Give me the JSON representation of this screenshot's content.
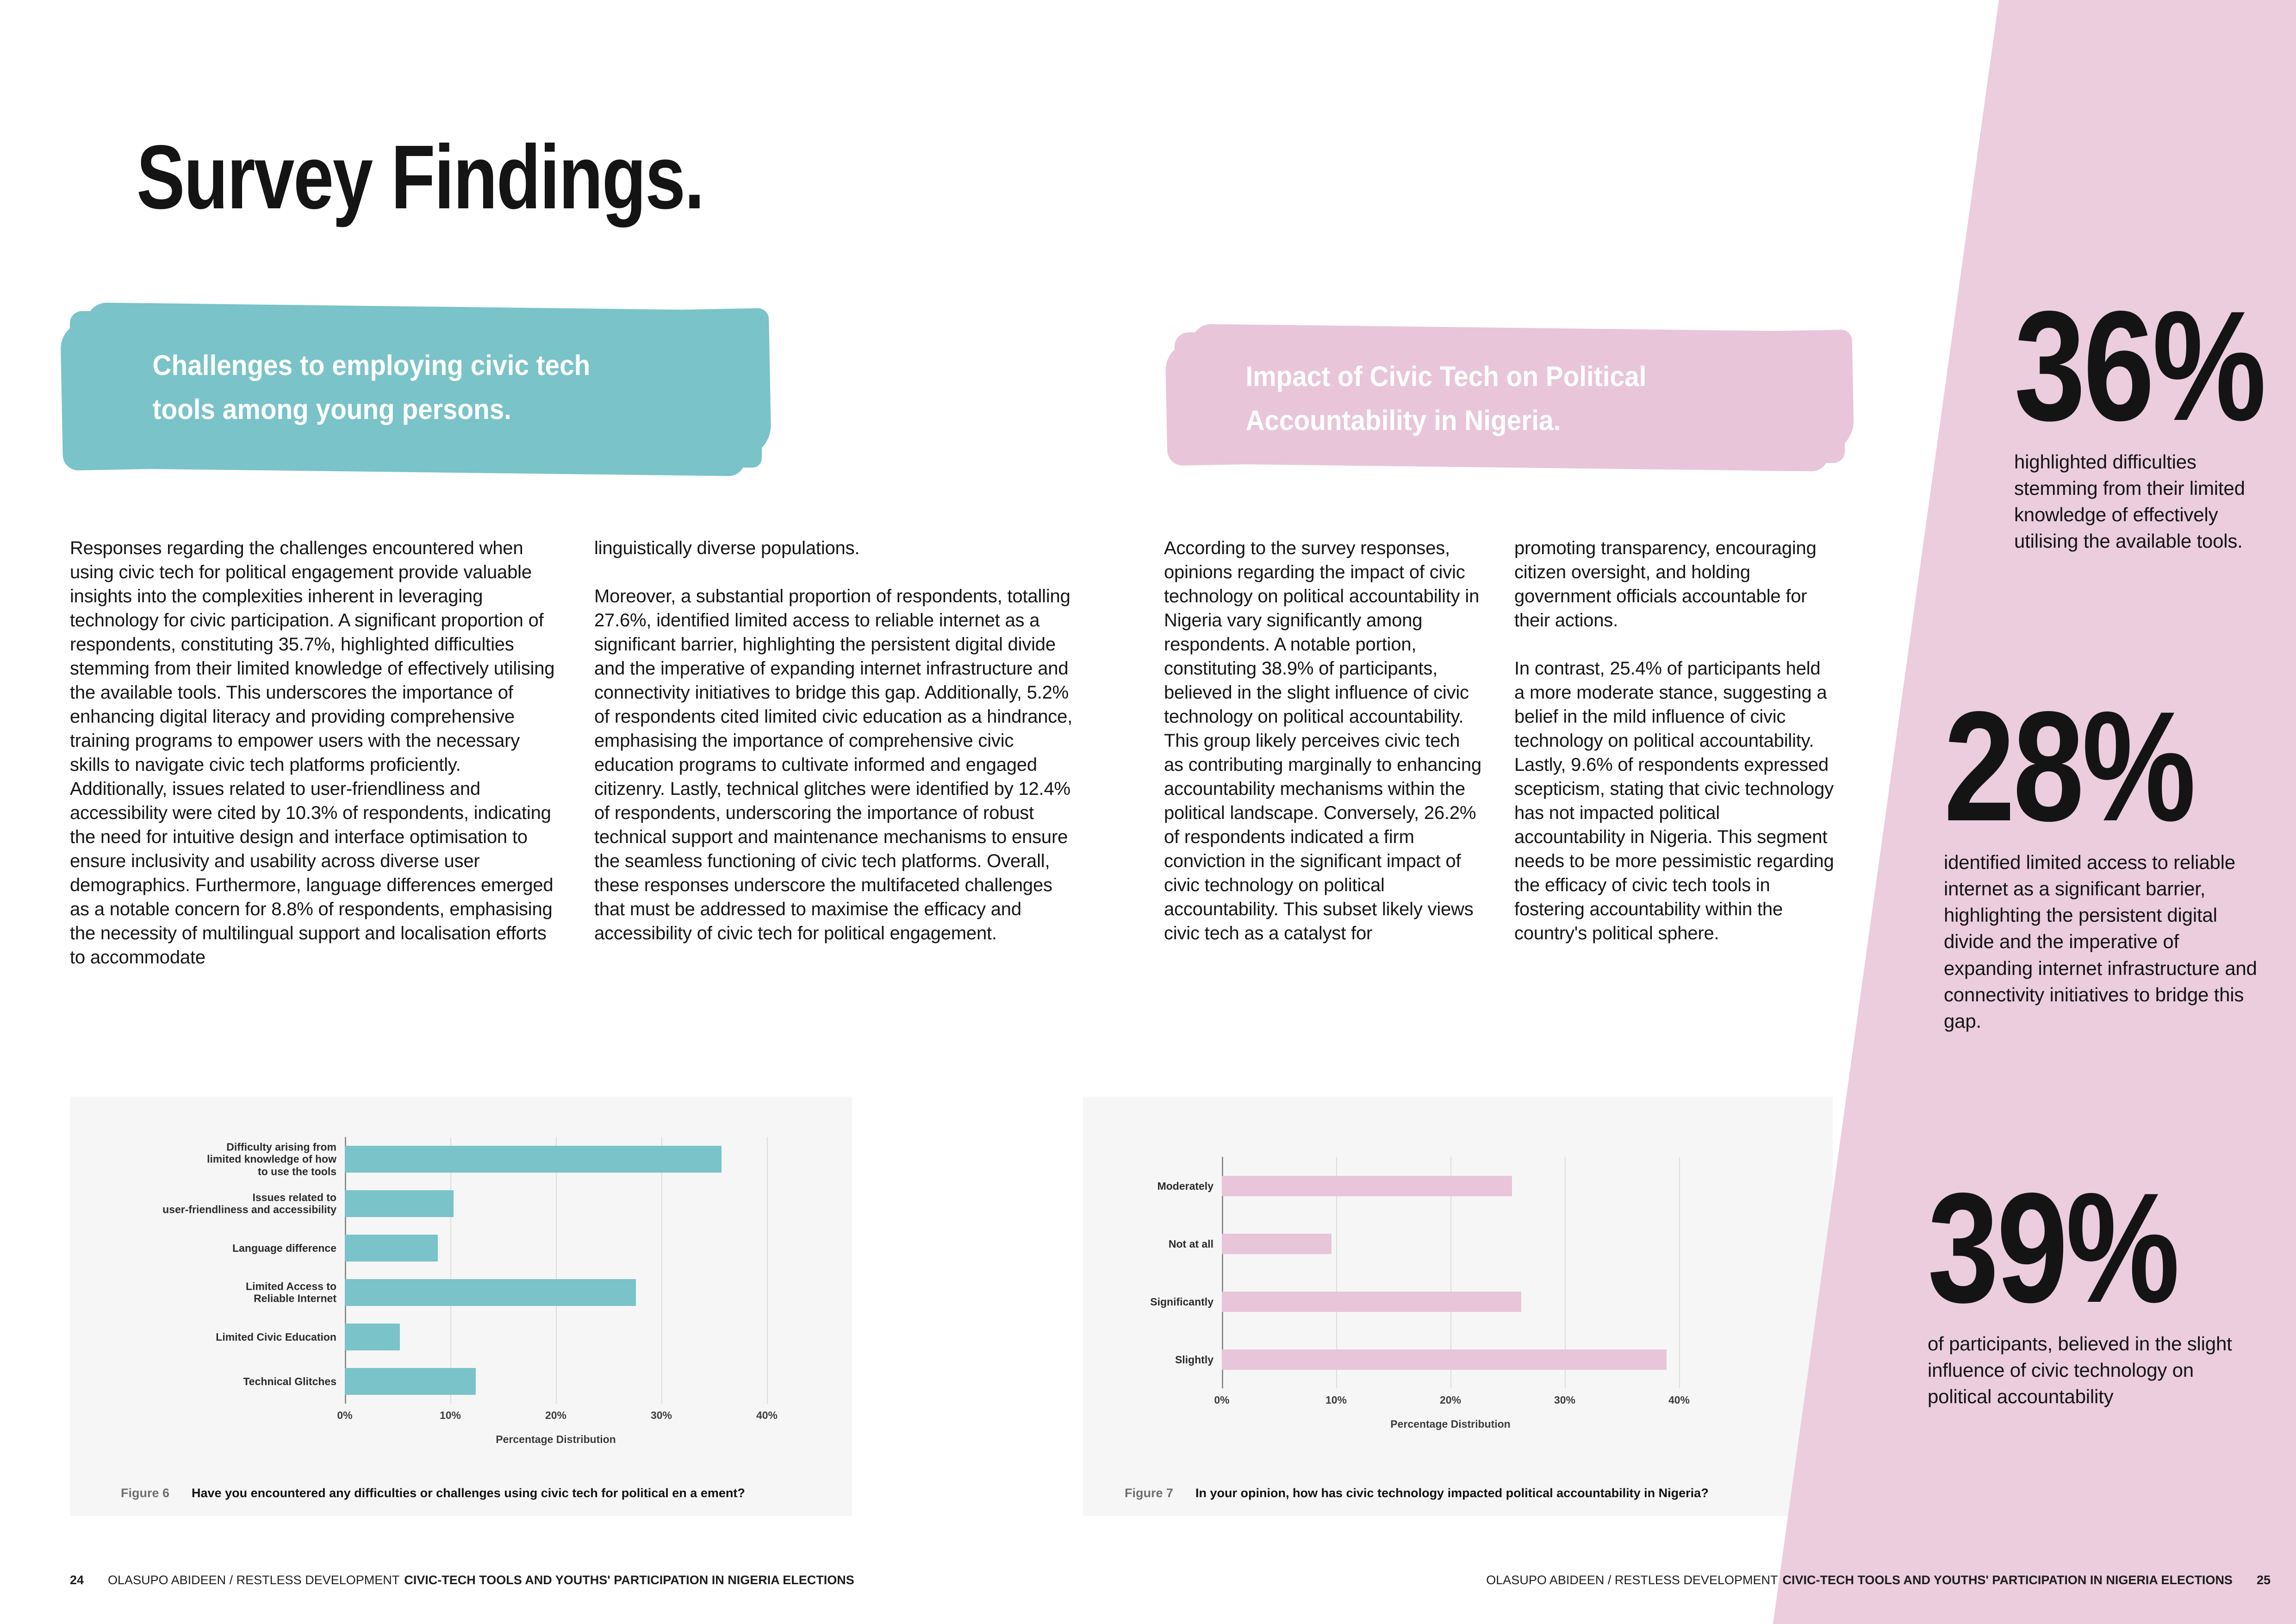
{
  "colors": {
    "teal": "#79c3c9",
    "pink": "#e8c5d8",
    "pink_band": "#ebcddd",
    "panel": "#f6f6f7"
  },
  "page": {
    "title": "Survey Findings."
  },
  "left_section": {
    "heading": "Challenges to employing civic tech\ntools among young persons.",
    "col1": "Responses regarding the challenges encountered when using civic tech for political engagement provide valuable insights into the complexities inherent in leveraging technology for civic participation. A significant proportion of respondents, constituting 35.7%, highlighted difficulties stemming from their limited knowledge of effectively utilising the available tools. This underscores the importance of enhancing digital literacy and providing comprehensive training programs to empower users with the necessary skills to navigate civic tech platforms proficiently. Additionally, issues related to user-friendliness and accessibility were cited by 10.3% of respondents, indicating the need for intuitive design and interface optimisation to ensure inclusivity and usability across diverse user demographics. Furthermore, language differences emerged as a notable concern for 8.8% of respondents, emphasising the necessity of multilingual support and localisation efforts to accommodate",
    "col2": "linguistically diverse populations.\n\nMoreover, a substantial proportion of respondents, totalling 27.6%, identified limited access to reliable internet as a significant barrier, highlighting the persistent digital divide and the imperative of expanding internet infrastructure and connectivity initiatives to bridge this gap. Additionally, 5.2% of respondents cited limited civic education as a hindrance, emphasising the importance of comprehensive civic education programs to cultivate informed and engaged citizenry. Lastly, technical glitches were identified by 12.4% of respondents, underscoring the importance of robust technical support and maintenance mechanisms to ensure the seamless functioning of civic tech platforms. Overall, these responses underscore the multifaceted challenges that must be addressed to maximise the efficacy and accessibility of civic tech for political engagement."
  },
  "right_section": {
    "heading": "Impact of Civic Tech on Political\nAccountability in Nigeria.",
    "col1": "According to the survey responses, opinions regarding the impact of civic technology on political accountability in Nigeria vary significantly among respondents. A notable portion, constituting 38.9% of participants, believed in the slight influence of civic technology on political accountability. This group likely perceives civic tech as contributing marginally to enhancing accountability mechanisms within the political landscape. Conversely, 26.2% of respondents indicated a firm conviction in the significant impact of civic technology on political accountability. This subset likely views civic tech as a catalyst for",
    "col2": "promoting transparency, encouraging citizen oversight, and holding government officials accountable for their actions.\n\nIn contrast, 25.4% of participants held a more moderate stance, suggesting a belief in the mild influence of civic technology on political accountability. Lastly, 9.6% of respondents expressed scepticism, stating that civic technology has not impacted political accountability in Nigeria. This segment needs to be more pessimistic regarding the efficacy of civic tech tools in fostering accountability within the country's political sphere."
  },
  "stats": [
    {
      "value": "36%",
      "text": "highlighted difficulties stemming from their limited knowledge of effectively utilising the available tools."
    },
    {
      "value": "28%",
      "text": "identified limited access to reliable internet as a significant barrier, highlighting the persistent digital divide and the imperative of expanding internet infrastructure and connectivity initiatives to bridge this gap."
    },
    {
      "value": "39%",
      "text": "of participants, believed in the slight influence of civic technology on political accountability"
    }
  ],
  "chart_data": [
    {
      "type": "bar",
      "orientation": "horizontal",
      "figure_label": "Figure 6",
      "title": "Have you encountered any difficulties or challenges using civic tech for political en a ement?",
      "categories": [
        "Difficulty arising from\nlimited knowledge of how\nto use the tools",
        "Issues related to\nuser-friendliness and accessibility",
        "Language difference",
        "Limited Access to\nReliable Internet",
        "Limited Civic Education",
        "Technical Glitches"
      ],
      "values": [
        35.7,
        10.3,
        8.8,
        27.6,
        5.2,
        12.4
      ],
      "xlabel": "Percentage Distribution",
      "xlim": [
        0,
        40
      ],
      "ticks": [
        0,
        10,
        20,
        30,
        40
      ],
      "tick_labels": [
        "0%",
        "10%",
        "20%",
        "30%",
        "40%"
      ],
      "bar_color": "#79c3c9",
      "grid": true,
      "legend": false
    },
    {
      "type": "bar",
      "orientation": "horizontal",
      "figure_label": "Figure 7",
      "title": "In your opinion, how has civic technology impacted political accountability in Nigeria?",
      "categories": [
        "Moderately",
        "Not at all",
        "Significantly",
        "Slightly"
      ],
      "values": [
        25.4,
        9.6,
        26.2,
        38.9
      ],
      "xlabel": "Percentage Distribution",
      "xlim": [
        0,
        40
      ],
      "ticks": [
        0,
        10,
        20,
        30,
        40
      ],
      "tick_labels": [
        "0%",
        "10%",
        "20%",
        "30%",
        "40%"
      ],
      "bar_color": "#e8c5d8",
      "grid": true,
      "legend": false
    }
  ],
  "footer_left": {
    "page_num": "24",
    "authors": "OLASUPO ABIDEEN / RESTLESS DEVELOPMENT",
    "doc_title": "CIVIC-TECH TOOLS AND YOUTHS' PARTICIPATION IN NIGERIA ELECTIONS"
  },
  "footer_right": {
    "page_num": "25",
    "authors": "OLASUPO ABIDEEN / RESTLESS DEVELOPMENT",
    "doc_title": "CIVIC-TECH TOOLS AND YOUTHS' PARTICIPATION IN NIGERIA ELECTIONS"
  }
}
